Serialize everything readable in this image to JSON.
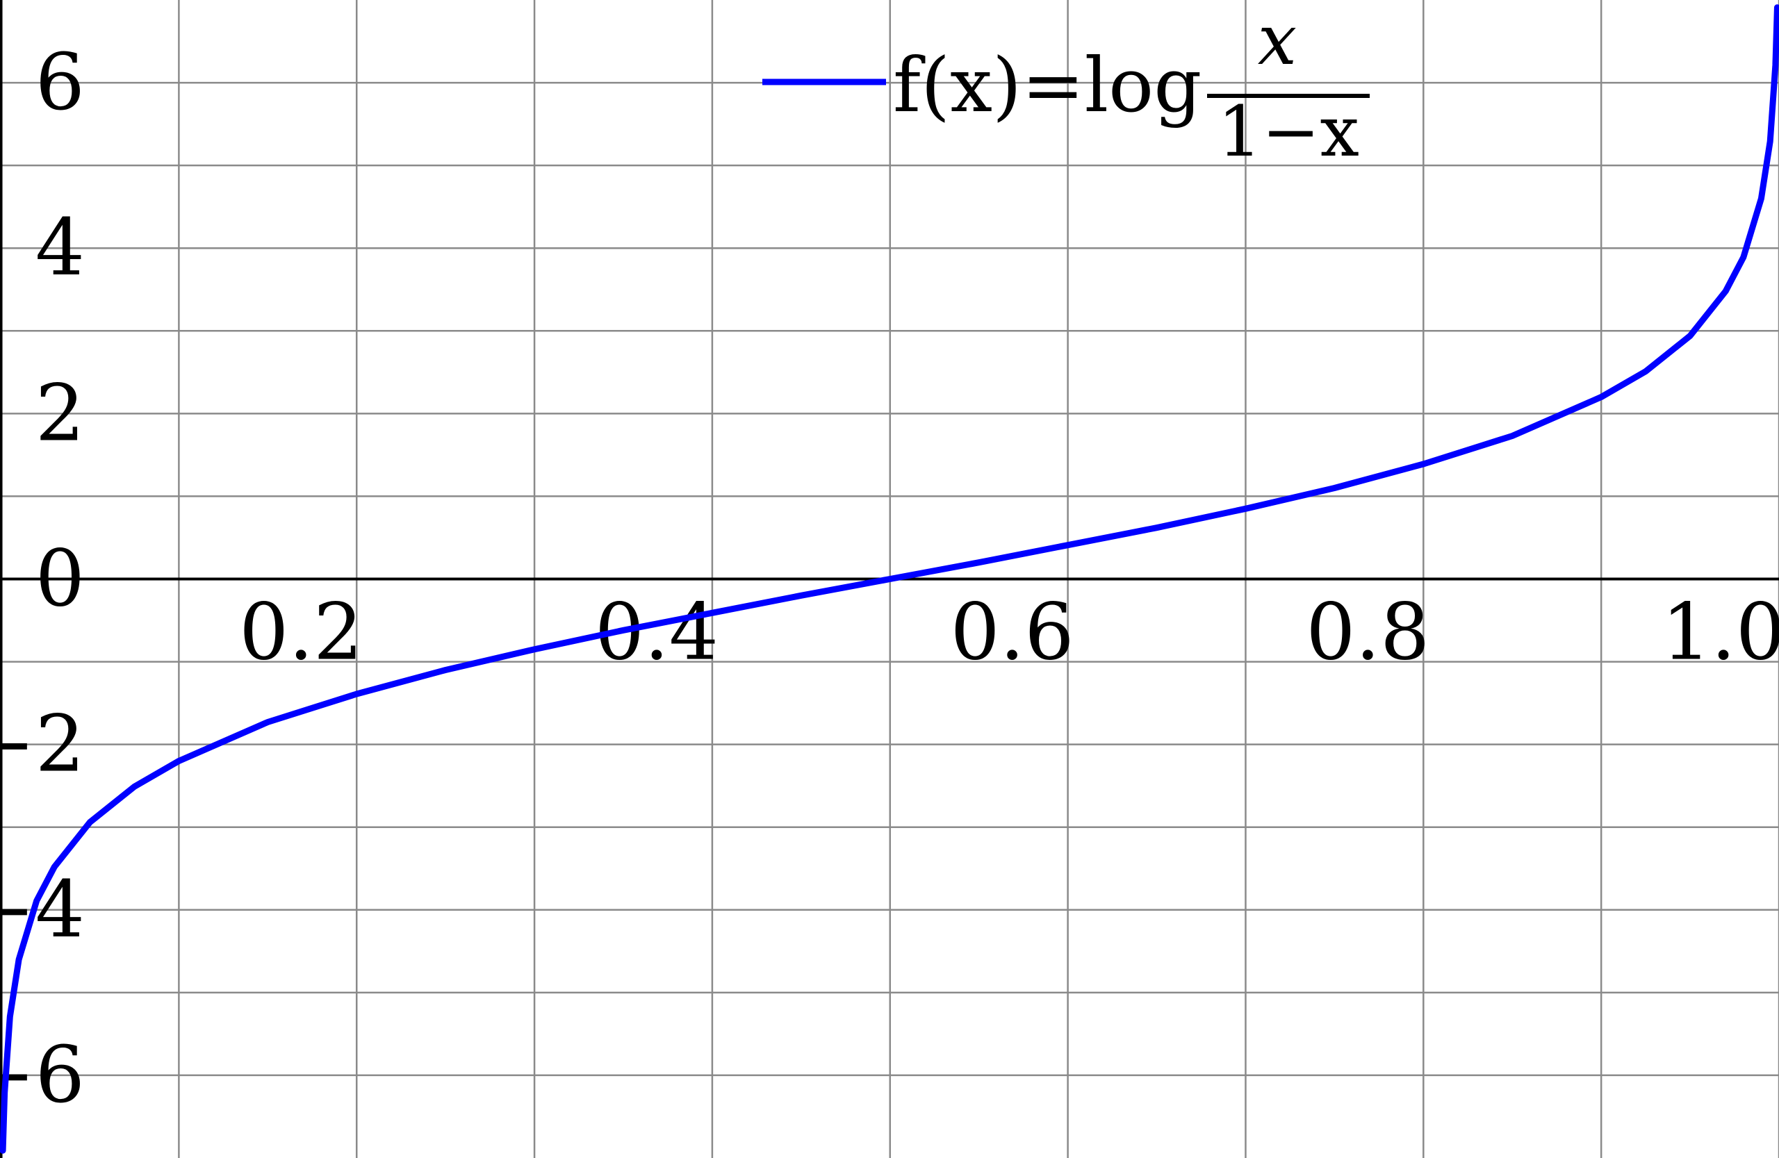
{
  "chart_data": {
    "type": "line",
    "title": "",
    "xlabel": "",
    "ylabel": "",
    "xlim": [
      -0.0006,
      1.0
    ],
    "ylim": [
      -7,
      7
    ],
    "grid": true,
    "legend_placement": "top-center",
    "x_ticks": [
      {
        "value": 0.2,
        "label": "0.2"
      },
      {
        "value": 0.4,
        "label": "0.4"
      },
      {
        "value": 0.6,
        "label": "0.6"
      },
      {
        "value": 0.8,
        "label": "0.8"
      },
      {
        "value": 1.0,
        "label": "1.0"
      }
    ],
    "x_grid": [
      0.1,
      0.2,
      0.3,
      0.4,
      0.5,
      0.6,
      0.7,
      0.8,
      0.9,
      1.0
    ],
    "y_ticks": [
      {
        "value": 6,
        "label": "6"
      },
      {
        "value": 4,
        "label": "4"
      },
      {
        "value": 2,
        "label": "2"
      },
      {
        "value": 0,
        "label": "0"
      },
      {
        "value": -2,
        "label": "−2"
      },
      {
        "value": -4,
        "label": "−4"
      },
      {
        "value": -6,
        "label": "−6"
      }
    ],
    "y_grid": [
      -6,
      -5,
      -4,
      -3,
      -2,
      -1,
      1,
      2,
      3,
      4,
      5,
      6
    ],
    "series": [
      {
        "name": "f(x)=log x/(1−x)",
        "color": "#0000ff",
        "x": [
          0.001,
          0.002,
          0.005,
          0.01,
          0.02,
          0.03,
          0.05,
          0.075,
          0.1,
          0.15,
          0.2,
          0.25,
          0.3,
          0.35,
          0.4,
          0.45,
          0.5,
          0.55,
          0.6,
          0.65,
          0.7,
          0.75,
          0.8,
          0.85,
          0.9,
          0.925,
          0.95,
          0.97,
          0.98,
          0.99,
          0.995,
          0.998,
          0.999
        ],
        "y": [
          -6.91,
          -6.21,
          -5.29,
          -4.6,
          -3.89,
          -3.48,
          -2.94,
          -2.51,
          -2.2,
          -1.73,
          -1.39,
          -1.1,
          -0.85,
          -0.62,
          -0.41,
          -0.2,
          0.0,
          0.2,
          0.41,
          0.62,
          0.85,
          1.1,
          1.39,
          1.73,
          2.2,
          2.51,
          2.94,
          3.48,
          3.89,
          4.6,
          5.29,
          6.21,
          6.91
        ]
      }
    ]
  },
  "legend": {
    "prefix": "f(x)=log",
    "numerator": "x",
    "denominator": "1−x"
  }
}
